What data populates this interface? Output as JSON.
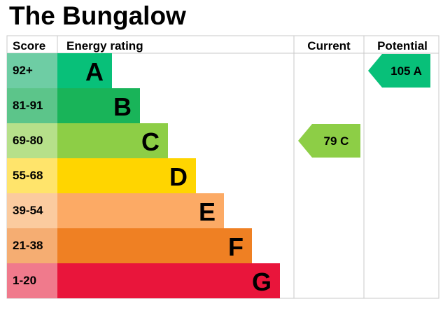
{
  "title": "The Bungalow",
  "headers": {
    "score": "Score",
    "rating": "Energy rating",
    "current": "Current",
    "potential": "Potential"
  },
  "chart_data": {
    "type": "bar",
    "categories": [
      "A",
      "B",
      "C",
      "D",
      "E",
      "F",
      "G"
    ],
    "score_ranges": [
      "92+",
      "81-91",
      "69-80",
      "55-68",
      "39-54",
      "21-38",
      "1-20"
    ],
    "band_colors": [
      "#08c079",
      "#19b459",
      "#8dce46",
      "#ffd500",
      "#fcaa65",
      "#ef8023",
      "#e9153b"
    ],
    "score_colors": [
      "#6ecda4",
      "#5cc58a",
      "#b6e08a",
      "#ffe46b",
      "#fbcb9f",
      "#f5ad72",
      "#f07a8c"
    ],
    "current": {
      "value": 79,
      "band": "C",
      "label": "79  C",
      "color": "#8dce46"
    },
    "potential": {
      "value": 105,
      "band": "A",
      "label": "105  A",
      "color": "#08c079"
    }
  }
}
